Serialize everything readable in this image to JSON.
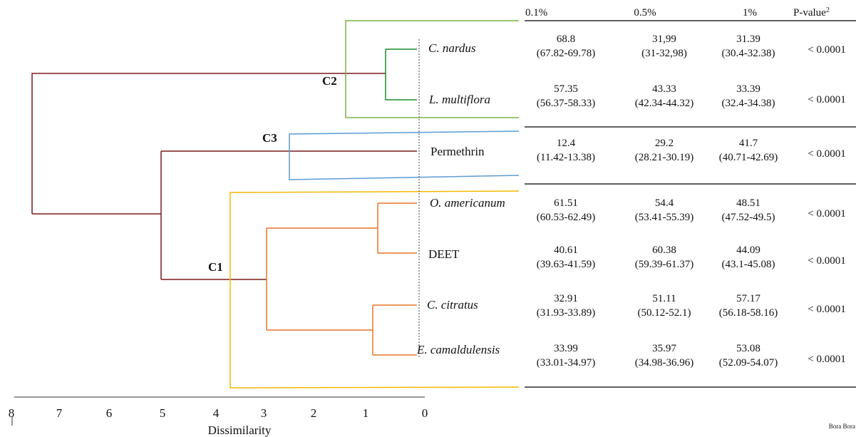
{
  "headers": [
    "0.1%",
    "0.5%",
    "1%",
    "P-value"
  ],
  "p_value_superscript": "2",
  "clusters": [
    "C2",
    "C3",
    "C1"
  ],
  "rows": [
    {
      "label": "C. nardus",
      "italic": true,
      "cells": [
        [
          "68.8",
          "(67.82-69.78)"
        ],
        [
          "31,99",
          "(31-32,98)"
        ],
        [
          "31.39",
          "(30.4-32.38)"
        ]
      ],
      "p": "< 0.0001"
    },
    {
      "label": "L. multiflora",
      "italic": true,
      "cells": [
        [
          "57.35",
          "(56.37-58.33)"
        ],
        [
          "43.33",
          "(42.34-44.32)"
        ],
        [
          "33.39",
          "(32.4-34.38)"
        ]
      ],
      "p": "< 0.0001"
    },
    {
      "label": "Permethrin",
      "italic": false,
      "cells": [
        [
          "12.4",
          "(11.42-13.38)"
        ],
        [
          "29.2",
          "(28.21-30.19)"
        ],
        [
          "41.7",
          "(40.71-42.69)"
        ]
      ],
      "p": "< 0.0001"
    },
    {
      "label": "O. americanum",
      "italic": true,
      "cells": [
        [
          "61.51",
          "(60.53-62.49)"
        ],
        [
          "54.4",
          "(53.41-55.39)"
        ],
        [
          "48.51",
          "(47.52-49.5)"
        ]
      ],
      "p": "< 0.0001"
    },
    {
      "label": "DEET",
      "italic": false,
      "cells": [
        [
          "40.61",
          "(39.63-41.59)"
        ],
        [
          "60.38",
          "(59.39-61.37)"
        ],
        [
          "44.09",
          "(43.1-45.08)"
        ]
      ],
      "p": "< 0.0001"
    },
    {
      "label": "C. citratus",
      "italic": true,
      "cells": [
        [
          "32.91",
          "(31.93-33.89)"
        ],
        [
          "51.11",
          "(50.12-52.1)"
        ],
        [
          "57.17",
          "(56.18-58.16)"
        ]
      ],
      "p": "< 0.0001"
    },
    {
      "label": "E. camaldulensis",
      "italic": true,
      "cells": [
        [
          "33.99",
          "(33.01-34.97)"
        ],
        [
          "35.97",
          "(34.98-36.96)"
        ],
        [
          "53.08",
          "(52.09-54.07)"
        ]
      ],
      "p": "< 0.0001"
    }
  ],
  "axis": {
    "ticks": [
      "8",
      "7",
      "6",
      "5",
      "4",
      "3",
      "2",
      "1",
      "0"
    ],
    "label": "Dissimilarity"
  },
  "credit": "Bora Bora",
  "colors": {
    "dendro_main": "#7b1a1a",
    "c2_box": "#7cb342",
    "c2_branch": "#1b8a2b",
    "c3_box": "#5b9bd5",
    "c1_box": "#f5b800",
    "c1_branch": "#e8742a",
    "rule": "#000000"
  }
}
